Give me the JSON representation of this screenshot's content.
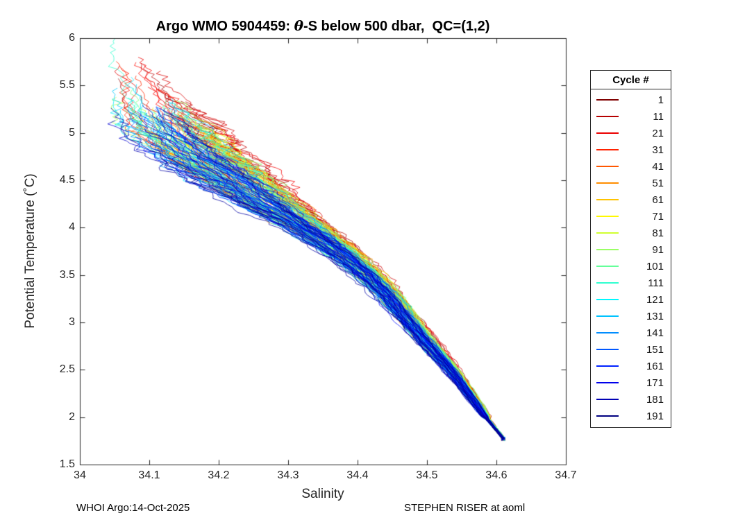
{
  "title_parts": {
    "pre": "Argo WMO 5904459: ",
    "theta": "θ",
    "post": "-S below 500 dbar,  QC=(1,2)"
  },
  "footer": {
    "left": "WHOI Argo:14-Oct-2025",
    "right": "STEPHEN RISER at aoml"
  },
  "chart_data": {
    "type": "line",
    "title": "Argo WMO 5904459: θ-S below 500 dbar,  QC=(1,2)",
    "xlabel": "Salinity",
    "ylabel": "Potential Temperature (˚C)",
    "xlim": [
      34,
      34.7
    ],
    "ylim": [
      1.5,
      6
    ],
    "xticks": [
      34,
      34.1,
      34.2,
      34.3,
      34.4,
      34.5,
      34.6,
      34.7
    ],
    "xtick_labels": [
      "34",
      "34.1",
      "34.2",
      "34.3",
      "34.4",
      "34.5",
      "34.6",
      "34.7"
    ],
    "yticks": [
      1.5,
      2,
      2.5,
      3,
      3.5,
      4,
      4.5,
      5,
      5.5,
      6
    ],
    "ytick_labels": [
      "1.5",
      "2",
      "2.5",
      "3",
      "3.5",
      "4",
      "4.5",
      "5",
      "5.5",
      "6"
    ],
    "grid": false,
    "n_cycles": 191,
    "colormap": "jet reversed (cycle 1 = dark red, cycle 191 = dark navy)",
    "legend": {
      "title": "Cycle #",
      "position": "outside-right",
      "entries": [
        {
          "label": "1",
          "color": "#800000"
        },
        {
          "label": "11",
          "color": "#b50000"
        },
        {
          "label": "21",
          "color": "#eb0000"
        },
        {
          "label": "31",
          "color": "#ff2200"
        },
        {
          "label": "41",
          "color": "#ff5700"
        },
        {
          "label": "51",
          "color": "#ff8d00"
        },
        {
          "label": "61",
          "color": "#ffc300"
        },
        {
          "label": "71",
          "color": "#fff800"
        },
        {
          "label": "81",
          "color": "#d0ff2f"
        },
        {
          "label": "91",
          "color": "#9aff65"
        },
        {
          "label": "101",
          "color": "#65ff9a"
        },
        {
          "label": "111",
          "color": "#2fffd0"
        },
        {
          "label": "121",
          "color": "#00f8ff"
        },
        {
          "label": "131",
          "color": "#00c3ff"
        },
        {
          "label": "141",
          "color": "#008dff"
        },
        {
          "label": "151",
          "color": "#0057ff"
        },
        {
          "label": "161",
          "color": "#0022ff"
        },
        {
          "label": "171",
          "color": "#0000eb"
        },
        {
          "label": "181",
          "color": "#0000b5"
        },
        {
          "label": "191",
          "color": "#000080"
        }
      ]
    },
    "mean_profile": {
      "theta": [
        1.75,
        2.0,
        2.5,
        3.0,
        3.25,
        3.5,
        3.75,
        4.0,
        4.25,
        4.5,
        4.75,
        5.0,
        5.25,
        5.5,
        6.0
      ],
      "salinity": [
        34.613,
        34.585,
        34.535,
        34.475,
        34.448,
        34.415,
        34.375,
        34.325,
        34.27,
        34.22,
        34.17,
        34.13,
        34.1,
        34.085,
        34.06
      ]
    },
    "spread_halfwidth": {
      "theta": [
        1.75,
        2.0,
        2.5,
        3.0,
        3.5,
        4.0,
        4.5,
        5.0,
        5.5,
        6.0
      ],
      "salinity": [
        0.004,
        0.006,
        0.012,
        0.016,
        0.022,
        0.035,
        0.06,
        0.075,
        0.045,
        0.02
      ]
    },
    "convergence_point": {
      "salinity": 34.61,
      "theta": 1.75
    }
  }
}
